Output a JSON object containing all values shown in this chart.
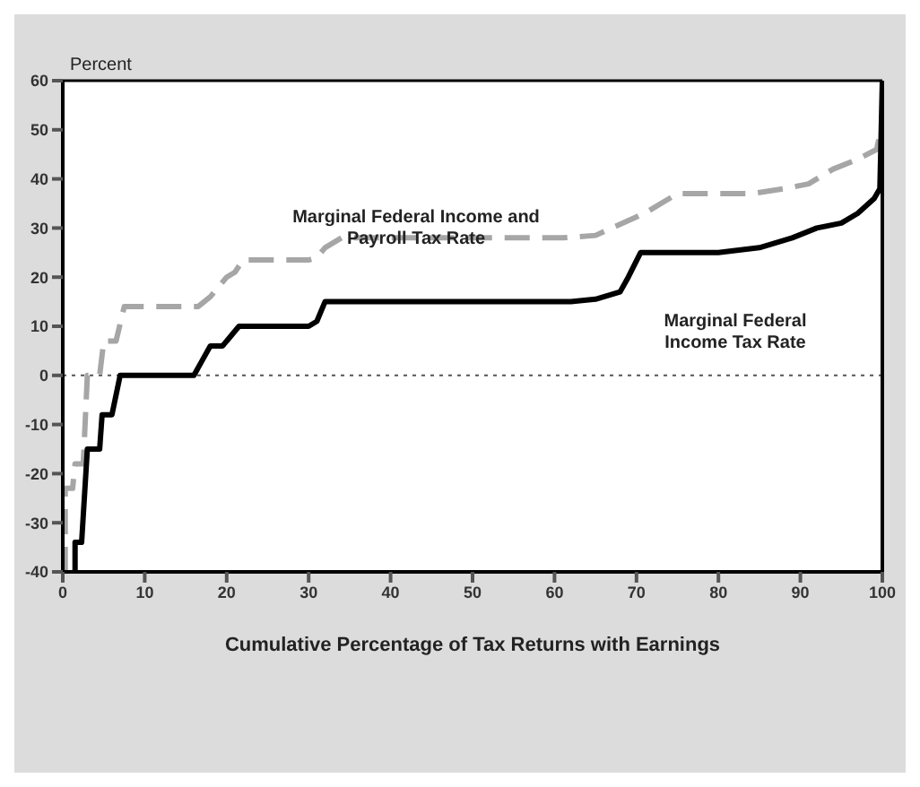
{
  "chart_data": {
    "type": "line",
    "xlabel": "Cumulative Percentage of Tax Returns with Earnings",
    "ylabel": "Percent",
    "xlim": [
      0,
      100
    ],
    "xticks": [
      0,
      10,
      20,
      30,
      40,
      50,
      60,
      70,
      80,
      90,
      100
    ],
    "ylim": [
      -40,
      60
    ],
    "yticks": [
      -40,
      -30,
      -20,
      -10,
      0,
      10,
      20,
      30,
      40,
      50,
      60
    ],
    "marker": "none",
    "series": [
      {
        "color": "#a6a6a6",
        "line_style": "dashed",
        "x": [
          0.3,
          0.3,
          1.2,
          1.5,
          2.5,
          3,
          4.5,
          5,
          6.5,
          7.5,
          16.5,
          18,
          19,
          20,
          21,
          22,
          30,
          31,
          32,
          34,
          61,
          65,
          67,
          71,
          75,
          84,
          88,
          91,
          94,
          97,
          99.3,
          99.7
        ],
        "values": [
          -40,
          -23,
          -23,
          -18,
          -18,
          0,
          0,
          7,
          7,
          14,
          14,
          16,
          18,
          20,
          21,
          23.5,
          23.5,
          24,
          26,
          28,
          28,
          28.5,
          30,
          33,
          37,
          37,
          38,
          39,
          42,
          44,
          46,
          49
        ]
      },
      {
        "color": "#000000",
        "line_style": "solid",
        "x": [
          1.5,
          1.5,
          2.3,
          3,
          4.5,
          4.8,
          6,
          7,
          16,
          17,
          18,
          19.5,
          20.5,
          21.5,
          30,
          31,
          32,
          62,
          65,
          68,
          69,
          70.5,
          80,
          85,
          89,
          92,
          95,
          97,
          99,
          99.7,
          100
        ],
        "values": [
          -40,
          -34,
          -34,
          -15,
          -15,
          -8,
          -8,
          0,
          0,
          3,
          6,
          6,
          8,
          10,
          10,
          11,
          15,
          15,
          15.5,
          17,
          20,
          25,
          25,
          26,
          28,
          30,
          31,
          33,
          36,
          38,
          60
        ]
      }
    ],
    "ref_lines": [
      {
        "axis": "y",
        "value": 0,
        "color": "#555555",
        "line_style": "dotted"
      }
    ],
    "annotations": [
      "Marginal Federal Income and Payroll Tax Rate",
      "Marginal Federal Income Tax Rate"
    ]
  }
}
